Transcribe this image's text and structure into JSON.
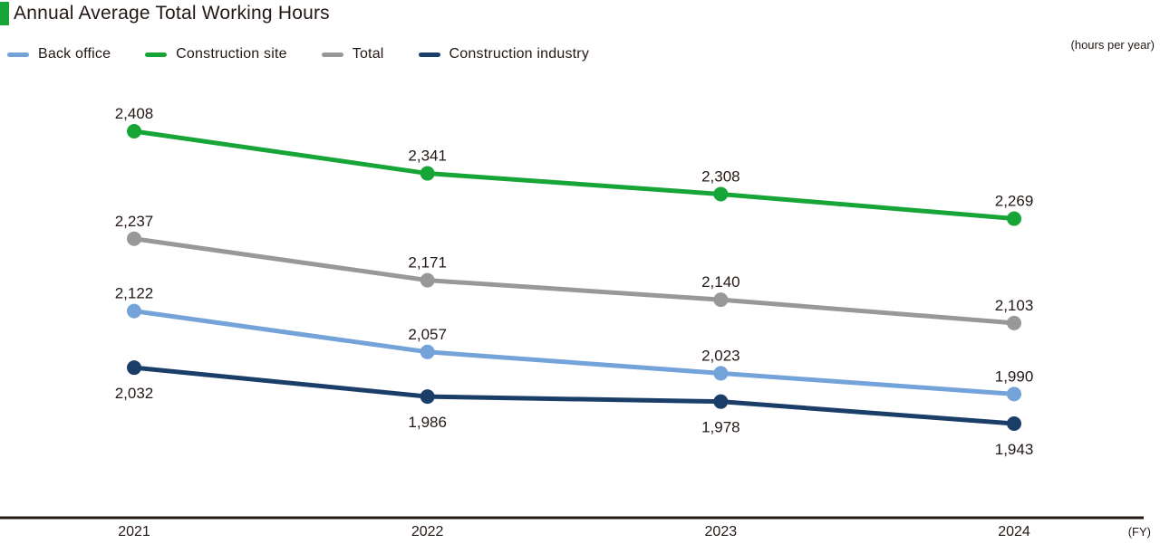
{
  "header": {
    "title": "Annual Average Total Working Hours"
  },
  "unit_label": "(hours per year)",
  "fy_label": "(FY)",
  "colors": {
    "title_accent": "#18A538",
    "axis": "#231815",
    "label_text": "#231815"
  },
  "chart_data": {
    "type": "line",
    "title": "Annual Average Total Working Hours",
    "x": [
      "2021",
      "2022",
      "2023",
      "2024"
    ],
    "series": [
      {
        "name": "Back office",
        "color": "#74A3D9",
        "values": [
          2122,
          2057,
          2023,
          1990
        ],
        "label_position": "above"
      },
      {
        "name": "Construction site",
        "color": "#18A538",
        "values": [
          2408,
          2341,
          2308,
          2269
        ],
        "label_position": "above"
      },
      {
        "name": "Total",
        "color": "#989898",
        "values": [
          2237,
          2171,
          2140,
          2103
        ],
        "label_position": "above"
      },
      {
        "name": "Construction industry",
        "color": "#1B3E68",
        "values": [
          2032,
          1986,
          1978,
          1943
        ],
        "label_position": "below"
      }
    ],
    "xlabel": "(FY)",
    "ylabel": "(hours per year)",
    "ylim": [
      1900,
      2450
    ],
    "grid": false,
    "legend_position": "top-left",
    "marker": "circle",
    "data_labels": true
  }
}
